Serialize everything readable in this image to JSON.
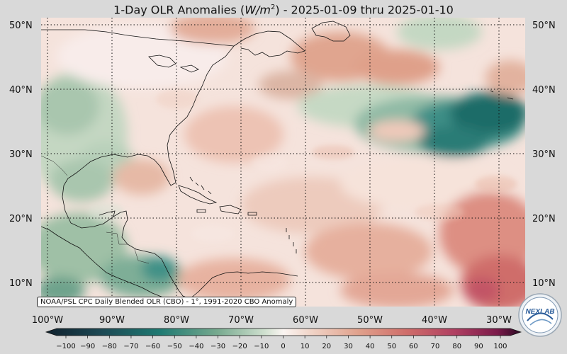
{
  "title_prefix": "1-Day OLR Anomalies (",
  "title_unit_base": "W/m",
  "title_unit_exp": "2",
  "title_suffix": ") - 2025-01-09 thru 2025-01-10",
  "source_label": "NOAA/PSL CPC Daily Blended OLR (CBO) - 1°, 1991-2020 CBO Anomaly",
  "logo_text": "NEXLAB",
  "lat_labels": [
    "50°N",
    "40°N",
    "30°N",
    "20°N",
    "10°N"
  ],
  "lon_labels": [
    "100°W",
    "90°W",
    "80°W",
    "70°W",
    "60°W",
    "50°W",
    "40°W",
    "30°W"
  ],
  "colorbar_ticks": [
    "−100",
    "−90",
    "−80",
    "−70",
    "−60",
    "−50",
    "−40",
    "−30",
    "−20",
    "−10",
    "0",
    "10",
    "20",
    "30",
    "40",
    "50",
    "60",
    "70",
    "80",
    "90",
    "100"
  ],
  "colors": {
    "strong_negative": "#173a3e",
    "moderate_negative": "#1f7a72",
    "weak_negative": "#bcd3bf",
    "near_zero": "#f7eeeb",
    "weak_positive": "#e8b8a5",
    "moderate_positive": "#cf6d6a",
    "strong_positive": "#7b1a4a"
  }
}
